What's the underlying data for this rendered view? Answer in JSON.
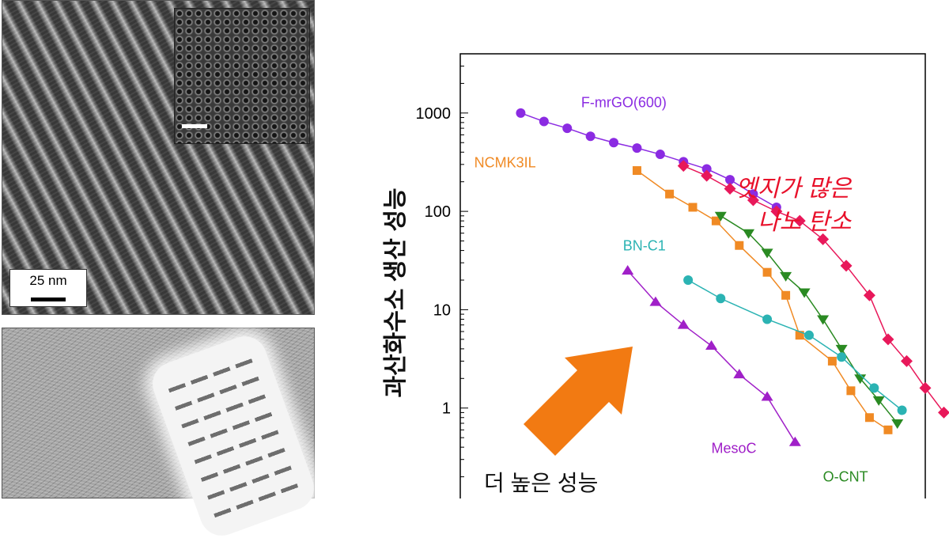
{
  "images": {
    "tem_top": {
      "scale_label": "25 nm"
    },
    "tem_bottom": {}
  },
  "chart_data": {
    "type": "scatter",
    "title": "",
    "xlabel": "",
    "ylabel": "과산화수소 생산 성능",
    "yscale": "log",
    "ylim": [
      0.1,
      4000
    ],
    "xlim": [
      0,
      100
    ],
    "yticks": [
      1,
      10,
      100,
      1000
    ],
    "ytick_labels": [
      "1",
      "10",
      "100",
      "1000"
    ],
    "grid": false,
    "series": [
      {
        "name": "F-mrGO(600)",
        "color": "#8b2be2",
        "marker": "circle",
        "label_x": 26,
        "label_y": 1150,
        "x": [
          13,
          18,
          23,
          28,
          33,
          38,
          43,
          48,
          53,
          58,
          63,
          68
        ],
        "y": [
          1000,
          820,
          700,
          580,
          500,
          440,
          380,
          320,
          270,
          210,
          150,
          110
        ]
      },
      {
        "name": "F-mrGO(600)",
        "color": "#e8185a",
        "marker": "diamond",
        "x": [
          48,
          53,
          58,
          63,
          68,
          73,
          78,
          83,
          88,
          92,
          96,
          100,
          104
        ],
        "y": [
          290,
          230,
          170,
          130,
          100,
          80,
          52,
          28,
          14,
          5,
          3,
          1.6,
          0.9
        ]
      },
      {
        "name": "NCMK3IL",
        "color": "#f08a24",
        "marker": "square",
        "label_x": 3,
        "label_y": 280,
        "x": [
          38,
          45,
          50,
          55,
          60,
          66,
          70,
          73,
          80,
          84,
          88,
          92
        ],
        "y": [
          260,
          150,
          110,
          80,
          45,
          24,
          14,
          5.5,
          3,
          1.5,
          0.8,
          0.6
        ]
      },
      {
        "name": "O-CNT",
        "color": "#2a8a22",
        "marker": "triangle-down",
        "label_x": 78,
        "label_y": 0.18,
        "x": [
          56,
          62,
          66,
          70,
          74,
          78,
          82,
          86,
          90,
          94
        ],
        "y": [
          90,
          60,
          38,
          22,
          15,
          8,
          4,
          2,
          1.2,
          0.7
        ]
      },
      {
        "name": "BN-C1",
        "color": "#2bb3b3",
        "marker": "circle",
        "label_x": 35,
        "label_y": 40,
        "x": [
          49,
          56,
          66,
          75,
          82,
          89,
          95
        ],
        "y": [
          20,
          13,
          8,
          5.5,
          3.3,
          1.6,
          0.95
        ]
      },
      {
        "name": "MesoC",
        "color": "#a020c8",
        "marker": "triangle-up",
        "label_x": 54,
        "label_y": 0.35,
        "x": [
          36,
          42,
          48,
          54,
          60,
          66,
          72
        ],
        "y": [
          25,
          12,
          7,
          4.3,
          2.2,
          1.3,
          0.45
        ]
      }
    ],
    "annotations": {
      "edge_text_line1": "엣지가 많은",
      "edge_text_line2": "나노 탄소",
      "edge_text_color": "#e8102a",
      "arrow_text": "더 높은 성능",
      "arrow_color": "#f27a12"
    }
  }
}
